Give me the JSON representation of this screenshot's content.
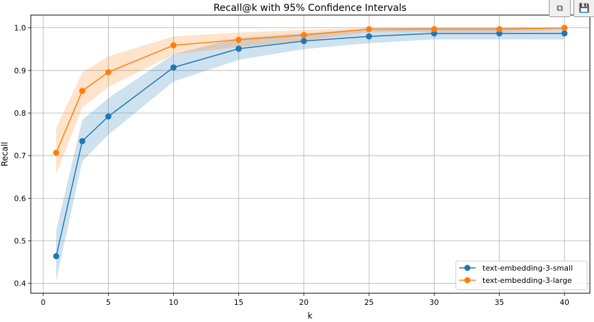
{
  "toolbar": {
    "copy_icon": "copy-icon",
    "save_icon": "save-icon"
  },
  "chart_data": {
    "type": "line",
    "title": "Recall@k with 95% Confidence Intervals",
    "xlabel": "k",
    "ylabel": "Recall",
    "xlim": [
      -0.95,
      41.95
    ],
    "ylim": [
      0.377,
      1.03
    ],
    "xticks": [
      0,
      5,
      10,
      15,
      20,
      25,
      30,
      35,
      40
    ],
    "yticks": [
      0.4,
      0.5,
      0.6,
      0.7,
      0.8,
      0.9,
      1.0
    ],
    "ytick_labels": [
      "0.4",
      "0.5",
      "0.6",
      "0.7",
      "0.8",
      "0.9",
      "1.0"
    ],
    "grid": true,
    "legend_position": "bottom-right",
    "x": [
      1,
      3,
      5,
      10,
      15,
      20,
      25,
      30,
      35,
      40
    ],
    "series": [
      {
        "name": "text-embedding-3-small",
        "color": "#1f77b4",
        "values": [
          0.464,
          0.734,
          0.792,
          0.907,
          0.951,
          0.969,
          0.98,
          0.987,
          0.987,
          0.987
        ],
        "ci_lower": [
          0.407,
          0.687,
          0.749,
          0.874,
          0.925,
          0.95,
          0.964,
          0.973,
          0.973,
          0.973
        ],
        "ci_upper": [
          0.525,
          0.784,
          0.835,
          0.938,
          0.977,
          0.987,
          0.998,
          1.0,
          1.0,
          1.0
        ]
      },
      {
        "name": "text-embedding-3-large",
        "color": "#ff7f0e",
        "values": [
          0.707,
          0.852,
          0.896,
          0.959,
          0.972,
          0.983,
          0.997,
          0.997,
          0.997,
          1.0
        ],
        "ci_lower": [
          0.657,
          0.813,
          0.861,
          0.938,
          0.955,
          0.97,
          0.99,
          0.99,
          0.99,
          0.995
        ],
        "ci_upper": [
          0.765,
          0.895,
          0.933,
          0.98,
          0.989,
          0.995,
          1.0,
          1.0,
          1.0,
          1.0
        ]
      }
    ]
  }
}
